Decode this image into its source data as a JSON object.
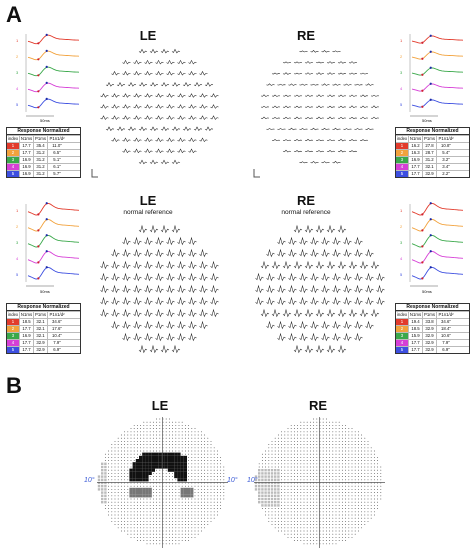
{
  "panels": {
    "a_label": "A",
    "b_label": "B"
  },
  "mferg": {
    "top_left_title": "LE",
    "top_right_title": "RE",
    "bottom_left_title": "LE",
    "bottom_right_title": "RE",
    "bottom_left_subtitle": "normal reference",
    "bottom_right_subtitle": "normal reference",
    "scale_label": "50ms",
    "ring_numbers": [
      "1",
      "2",
      "3",
      "4",
      "5"
    ],
    "trace_colors": [
      "#e23b2c",
      "#f2a23c",
      "#3aa84a",
      "#d63fd6",
      "#3d4fe0"
    ]
  },
  "tables": {
    "title": "Response Normalized",
    "header": [
      "index",
      "N1ms",
      "P1ms",
      "P1n1/d²"
    ],
    "row_colors": [
      "#e23b2c",
      "#f2a23c",
      "#3aa84a",
      "#d63fd6",
      "#3d4fe0"
    ],
    "top_left": [
      [
        "1",
        "17.7",
        "35.4",
        "11.0\""
      ],
      [
        "2",
        "17.7",
        "31.2",
        "6.5\""
      ],
      [
        "3",
        "16.9",
        "31.2",
        "5.1\""
      ],
      [
        "4",
        "16.9",
        "31.2",
        "6.1\""
      ],
      [
        "5",
        "16.9",
        "31.2",
        "5.7\""
      ]
    ],
    "top_right": [
      [
        "1",
        "16.2",
        "27.8",
        "10.8\""
      ],
      [
        "2",
        "16.3",
        "28.7",
        "5.4\""
      ],
      [
        "3",
        "16.9",
        "31.2",
        "3.2\""
      ],
      [
        "4",
        "17.7",
        "32.1",
        "3.4\""
      ],
      [
        "5",
        "17.7",
        "32.9",
        "2.2\""
      ]
    ],
    "bottom_left": [
      [
        "1",
        "18.5",
        "32.1",
        "34.6\""
      ],
      [
        "2",
        "17.7",
        "32.1",
        "17.6\""
      ],
      [
        "3",
        "16.9",
        "32.1",
        "10.4\""
      ],
      [
        "4",
        "17.7",
        "32.9",
        "7.9\""
      ],
      [
        "5",
        "17.7",
        "32.9",
        "6.9\""
      ]
    ],
    "bottom_right": [
      [
        "1",
        "19.4",
        "33.8",
        "34.6\""
      ],
      [
        "2",
        "18.5",
        "32.9",
        "18.4\""
      ],
      [
        "3",
        "15.9",
        "32.9",
        "10.6\""
      ],
      [
        "4",
        "17.7",
        "32.9",
        "7.9\""
      ],
      [
        "5",
        "17.7",
        "32.9",
        "6.9\""
      ]
    ]
  },
  "visual_fields": {
    "left_title": "LE",
    "right_title": "RE",
    "left_ten_left": "10°",
    "left_ten_right": "10°",
    "right_ten_left": "10°"
  }
}
